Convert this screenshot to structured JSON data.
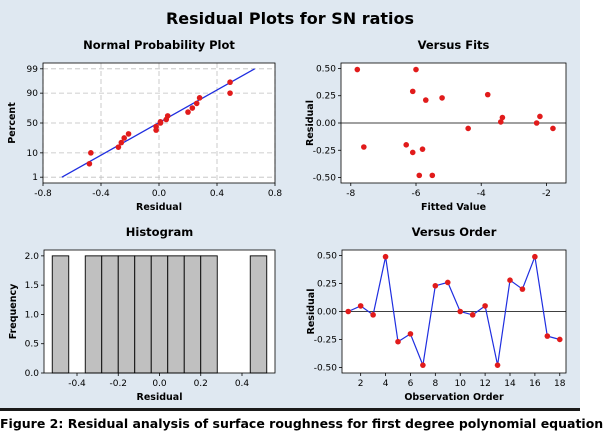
{
  "title": "Residual Plots for SN ratios",
  "caption": "Figure 2: Residual analysis of surface roughness for first degree polynomial equation",
  "colors": {
    "panel_bg": "#dfe8f1",
    "plot_bg": "#ffffff",
    "grid": "#bfbfbf",
    "point": "#e11b1b",
    "line": "#1f2ee0",
    "bar": "#c0c0c0"
  },
  "chart_data": [
    {
      "id": "npp",
      "type": "scatter",
      "title": "Normal Probability Plot",
      "xlabel": "Residual",
      "ylabel": "Percent",
      "xlim": [
        -0.8,
        0.8
      ],
      "x_ticks": [
        "-0.8",
        "-0.4",
        "0.0",
        "0.4",
        "0.8"
      ],
      "y_scale": "normal-probability",
      "y_ticks": [
        "1",
        "10",
        "50",
        "90",
        "99"
      ],
      "grid": true,
      "fit_line": [
        [
          -0.67,
          1
        ],
        [
          0.66,
          99
        ]
      ],
      "points": [
        [
          -0.48,
          4
        ],
        [
          -0.47,
          10
        ],
        [
          -0.28,
          15
        ],
        [
          -0.26,
          20
        ],
        [
          -0.24,
          26
        ],
        [
          -0.21,
          32
        ],
        [
          -0.02,
          38
        ],
        [
          -0.02,
          44
        ],
        [
          0.01,
          50
        ],
        [
          0.01,
          52
        ],
        [
          0.05,
          56
        ],
        [
          0.06,
          62
        ],
        [
          0.2,
          68
        ],
        [
          0.23,
          74
        ],
        [
          0.26,
          80
        ],
        [
          0.28,
          86
        ],
        [
          0.49,
          90
        ],
        [
          0.49,
          96
        ]
      ]
    },
    {
      "id": "fits",
      "type": "scatter",
      "title": "Versus Fits",
      "xlabel": "Fitted Value",
      "ylabel": "Residual",
      "xlim": [
        -8.3,
        -1.4
      ],
      "ylim": [
        -0.55,
        0.55
      ],
      "x_ticks": [
        "-8",
        "-6",
        "-4",
        "-2"
      ],
      "y_ticks": [
        "0.50",
        "0.25",
        "0.00",
        "-0.25",
        "-0.50"
      ],
      "reference_line": 0,
      "points": [
        [
          -7.8,
          0.49
        ],
        [
          -7.6,
          -0.22
        ],
        [
          -6.3,
          -0.2
        ],
        [
          -6.1,
          -0.27
        ],
        [
          -6.1,
          0.29
        ],
        [
          -6.0,
          0.49
        ],
        [
          -5.9,
          -0.48
        ],
        [
          -5.8,
          -0.24
        ],
        [
          -5.7,
          0.21
        ],
        [
          -5.5,
          -0.48
        ],
        [
          -5.2,
          0.23
        ],
        [
          -4.4,
          -0.05
        ],
        [
          -3.8,
          0.26
        ],
        [
          -3.4,
          0.01
        ],
        [
          -3.35,
          0.05
        ],
        [
          -2.3,
          0.0
        ],
        [
          -2.2,
          0.06
        ],
        [
          -1.8,
          -0.05
        ]
      ]
    },
    {
      "id": "hist",
      "type": "bar",
      "title": "Histogram",
      "xlabel": "Residual",
      "ylabel": "Frequency",
      "bin_width": 0.08,
      "bin_centers": [
        -0.48,
        -0.4,
        -0.32,
        -0.24,
        -0.16,
        -0.08,
        0.0,
        0.08,
        0.16,
        0.24,
        0.32,
        0.4,
        0.48
      ],
      "values": [
        2,
        0,
        2,
        2,
        2,
        2,
        2,
        2,
        2,
        2,
        0,
        0,
        2
      ],
      "xlim": [
        -0.56,
        0.56
      ],
      "ylim": [
        0,
        2.1
      ],
      "x_ticks": [
        "-0.4",
        "-0.2",
        "0.0",
        "0.2",
        "0.4"
      ],
      "y_ticks": [
        "0.0",
        "0.5",
        "1.0",
        "1.5",
        "2.0"
      ]
    },
    {
      "id": "order",
      "type": "line",
      "title": "Versus Order",
      "xlabel": "Observation Order",
      "ylabel": "Residual",
      "xlim": [
        0.5,
        18.5
      ],
      "ylim": [
        -0.55,
        0.55
      ],
      "x_ticks": [
        "2",
        "4",
        "6",
        "8",
        "10",
        "12",
        "14",
        "16",
        "18"
      ],
      "y_ticks": [
        "0.50",
        "0.25",
        "0.00",
        "-0.25",
        "-0.50"
      ],
      "reference_line": 0,
      "x": [
        1,
        2,
        3,
        4,
        5,
        6,
        7,
        8,
        9,
        10,
        11,
        12,
        13,
        14,
        15,
        16,
        17,
        18
      ],
      "values": [
        0.0,
        0.05,
        -0.03,
        0.49,
        -0.27,
        -0.2,
        -0.48,
        0.23,
        0.26,
        0.0,
        -0.03,
        0.05,
        -0.48,
        0.28,
        0.2,
        0.49,
        -0.22,
        -0.25
      ]
    }
  ]
}
